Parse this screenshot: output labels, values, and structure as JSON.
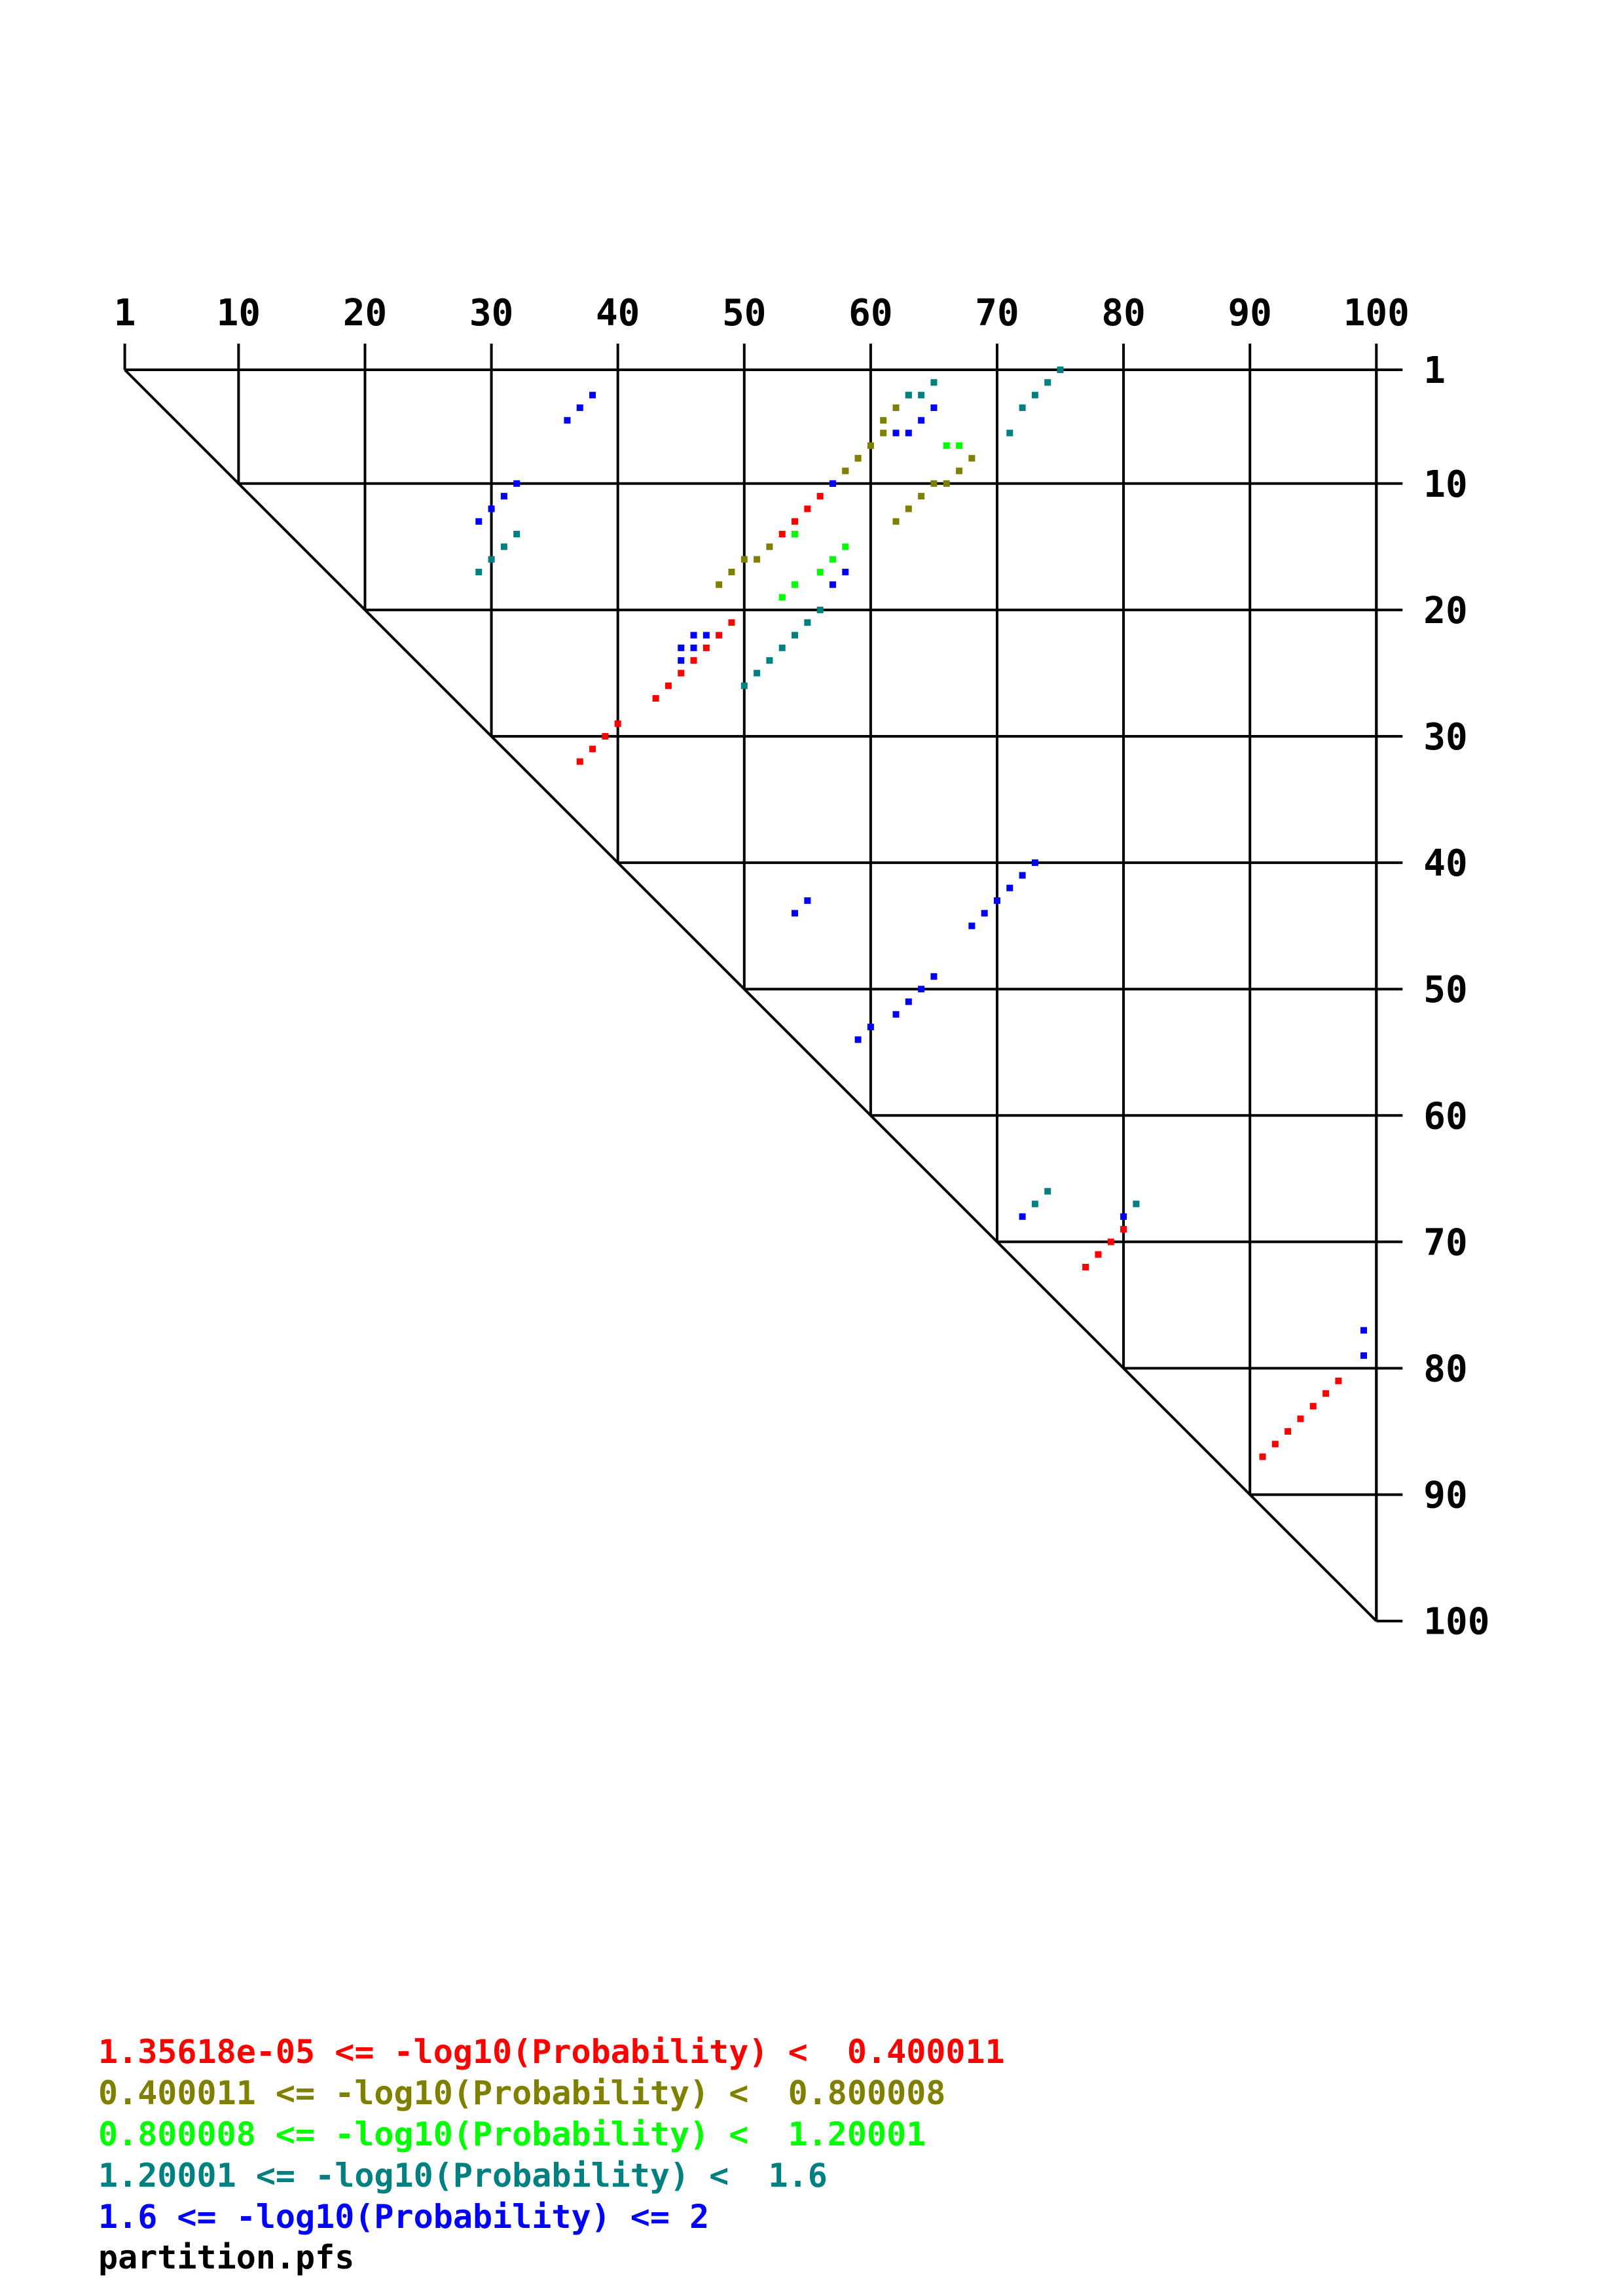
{
  "chart_data": {
    "type": "scatter",
    "title": "",
    "xlabel": "",
    "ylabel": "",
    "description": "Base-pair probability dot plot (upper triangle)",
    "axis_range": [
      1,
      100
    ],
    "ticks": [
      1,
      10,
      20,
      30,
      40,
      50,
      60,
      70,
      80,
      90,
      100
    ],
    "grid": true,
    "series": [
      {
        "color": "#ff0000",
        "label": "1.35618e-05 <= -log10(Probability) <  0.400011",
        "points": [
          [
            59,
            8
          ],
          [
            58,
            9
          ],
          [
            57,
            10
          ],
          [
            56,
            11
          ],
          [
            55,
            12
          ],
          [
            54,
            13
          ],
          [
            53,
            14
          ],
          [
            48,
            22
          ],
          [
            47,
            23
          ],
          [
            46,
            24
          ],
          [
            45,
            25
          ],
          [
            44,
            26
          ],
          [
            43,
            27
          ],
          [
            49,
            21
          ],
          [
            40,
            29
          ],
          [
            39,
            30
          ],
          [
            38,
            31
          ],
          [
            37,
            32
          ],
          [
            80,
            69
          ],
          [
            79,
            70
          ],
          [
            78,
            71
          ],
          [
            77,
            72
          ],
          [
            97,
            81
          ],
          [
            96,
            82
          ],
          [
            95,
            83
          ],
          [
            94,
            84
          ],
          [
            93,
            85
          ],
          [
            92,
            86
          ],
          [
            91,
            87
          ]
        ]
      },
      {
        "color": "#808000",
        "label": "0.400011 <= -log10(Probability) <  0.800008",
        "points": [
          [
            63,
            3
          ],
          [
            62,
            4
          ],
          [
            61,
            5
          ],
          [
            61,
            6
          ],
          [
            60,
            7
          ],
          [
            59,
            8
          ],
          [
            58,
            9
          ],
          [
            52,
            15
          ],
          [
            51,
            16
          ],
          [
            50,
            16
          ],
          [
            49,
            17
          ],
          [
            48,
            18
          ],
          [
            62,
            6
          ],
          [
            68,
            8
          ],
          [
            67,
            9
          ],
          [
            66,
            10
          ],
          [
            65,
            10
          ],
          [
            64,
            11
          ],
          [
            63,
            12
          ],
          [
            62,
            13
          ]
        ]
      },
      {
        "color": "#00ff00",
        "label": "0.800008 <= -log10(Probability) <  1.20001",
        "points": [
          [
            67,
            7
          ],
          [
            66,
            7
          ],
          [
            54,
            14
          ],
          [
            58,
            15
          ],
          [
            57,
            16
          ],
          [
            56,
            17
          ],
          [
            54,
            18
          ],
          [
            53,
            19
          ]
        ]
      },
      {
        "color": "#008080",
        "label": "1.20001 <= -log10(Probability) <  1.6",
        "points": [
          [
            65,
            2
          ],
          [
            64,
            3
          ],
          [
            63,
            3
          ],
          [
            75,
            1
          ],
          [
            74,
            2
          ],
          [
            73,
            3
          ],
          [
            72,
            4
          ],
          [
            71,
            6
          ],
          [
            32,
            14
          ],
          [
            31,
            15
          ],
          [
            30,
            16
          ],
          [
            29,
            17
          ],
          [
            56,
            20
          ],
          [
            55,
            21
          ],
          [
            54,
            22
          ],
          [
            53,
            23
          ],
          [
            52,
            24
          ],
          [
            51,
            25
          ],
          [
            50,
            26
          ],
          [
            74,
            66
          ],
          [
            73,
            67
          ],
          [
            81,
            67
          ]
        ]
      },
      {
        "color": "#0000ff",
        "label": "1.6 <= -log10(Probability) <= 2",
        "points": [
          [
            38,
            3
          ],
          [
            37,
            4
          ],
          [
            36,
            5
          ],
          [
            65,
            4
          ],
          [
            64,
            5
          ],
          [
            63,
            6
          ],
          [
            62,
            6
          ],
          [
            32,
            10
          ],
          [
            31,
            11
          ],
          [
            30,
            12
          ],
          [
            29,
            13
          ],
          [
            57,
            10
          ],
          [
            58,
            17
          ],
          [
            57,
            18
          ],
          [
            47,
            22
          ],
          [
            46,
            22
          ],
          [
            46,
            23
          ],
          [
            45,
            23
          ],
          [
            45,
            24
          ],
          [
            73,
            40
          ],
          [
            72,
            41
          ],
          [
            71,
            42
          ],
          [
            70,
            43
          ],
          [
            69,
            44
          ],
          [
            68,
            45
          ],
          [
            55,
            43
          ],
          [
            54,
            44
          ],
          [
            65,
            49
          ],
          [
            64,
            50
          ],
          [
            63,
            51
          ],
          [
            62,
            52
          ],
          [
            60,
            53
          ],
          [
            59,
            54
          ],
          [
            80,
            68
          ],
          [
            72,
            68
          ],
          [
            99,
            77
          ],
          [
            99,
            79
          ]
        ]
      }
    ]
  },
  "filename": "partition.pfs"
}
